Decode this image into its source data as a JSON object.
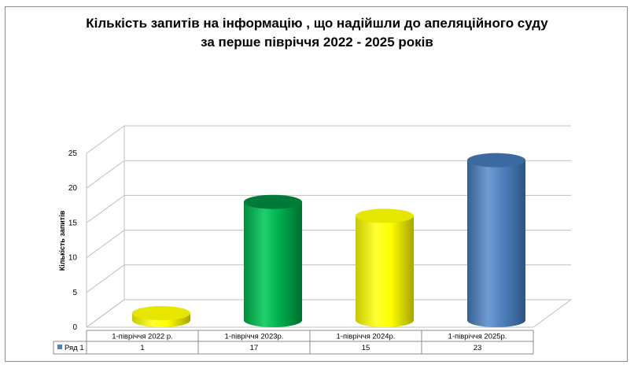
{
  "chart_data": {
    "type": "bar",
    "title": "Кількість запитів на інформацію , що надійшли до апеляційного суду",
    "subtitle": "за перше півріччя 2022 - 2025 років",
    "ylabel": "Кількість запитів",
    "xlabel": "",
    "ylim": [
      0,
      25
    ],
    "y_ticks": [
      "0",
      "5",
      "10",
      "15",
      "20",
      "25"
    ],
    "grid": true,
    "categories": [
      "1-півріччя 2022 р.",
      "1-півріччя 2023р.",
      "1-півріччя 2024р.",
      "1-півріччя 2025р."
    ],
    "series": [
      {
        "name": "Ряд 1",
        "values": [
          1,
          17,
          15,
          23
        ],
        "value_labels": [
          "1",
          "17",
          "15",
          "23"
        ]
      }
    ],
    "bar_colors": [
      "#ffff00",
      "#00b050",
      "#ffff00",
      "#4f81bd"
    ],
    "legend": "data-table"
  }
}
